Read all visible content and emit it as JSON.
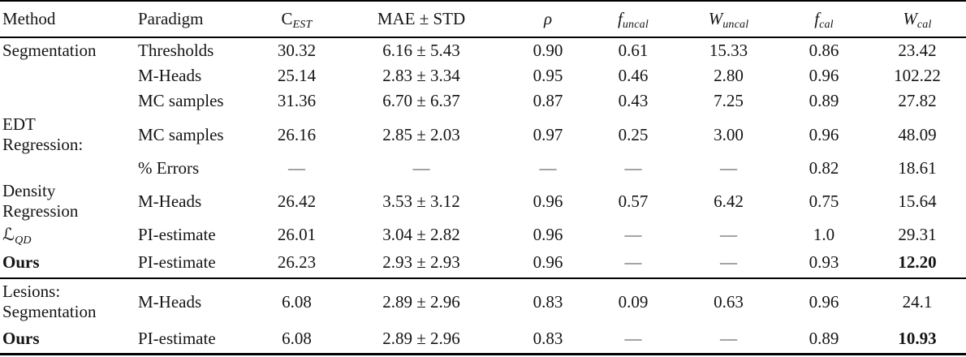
{
  "table": {
    "columns": [
      {
        "id": "method",
        "label": "Method"
      },
      {
        "id": "paradigm",
        "label": "Paradigm"
      },
      {
        "id": "c_est",
        "main": "C",
        "sub": "EST",
        "italic_main": false
      },
      {
        "id": "mae_std",
        "label": "MAE ± STD"
      },
      {
        "id": "rho",
        "label": "ρ",
        "italic": true
      },
      {
        "id": "f_uncal",
        "main": "f",
        "sub": "uncal",
        "italic_main": true
      },
      {
        "id": "w_uncal",
        "main": "W",
        "sub": "uncal",
        "italic_main": true
      },
      {
        "id": "f_cal",
        "main": "f",
        "sub": "cal",
        "italic_main": true
      },
      {
        "id": "w_cal",
        "main": "W",
        "sub": "cal",
        "italic_main": true
      }
    ],
    "rows": [
      {
        "method": {
          "text": "Segmentation"
        },
        "paradigm": "Thresholds",
        "values": [
          "30.32",
          "6.16 ± 5.43",
          "0.90",
          "0.61",
          "15.33",
          "0.86",
          "23.42"
        ]
      },
      {
        "method": {
          "text": ""
        },
        "paradigm": "M-Heads",
        "values": [
          "25.14",
          "2.83 ± 3.34",
          "0.95",
          "0.46",
          "2.80",
          "0.96",
          "102.22"
        ]
      },
      {
        "method": {
          "text": ""
        },
        "paradigm": "MC samples",
        "values": [
          "31.36",
          "6.70 ± 6.37",
          "0.87",
          "0.43",
          "7.25",
          "0.89",
          "27.82"
        ]
      },
      {
        "method": {
          "lines": [
            "EDT",
            "Regression:"
          ]
        },
        "paradigm": "MC samples",
        "values": [
          "26.16",
          "2.85 ± 2.03",
          "0.97",
          "0.25",
          "3.00",
          "0.96",
          "48.09"
        ]
      },
      {
        "method": {
          "text": ""
        },
        "paradigm": "% Errors",
        "values": [
          "—",
          "—",
          "—",
          "—",
          "—",
          "0.82",
          "18.61"
        ]
      },
      {
        "method": {
          "lines": [
            "Density",
            "Regression"
          ]
        },
        "paradigm": "M-Heads",
        "values": [
          "26.42",
          "3.53 ± 3.12",
          "0.96",
          "0.57",
          "6.42",
          "0.75",
          "15.64"
        ]
      },
      {
        "method": {
          "math": {
            "main": "ℒ",
            "sub": "QD"
          }
        },
        "paradigm": "PI-estimate",
        "values": [
          "26.01",
          "3.04 ± 2.82",
          "0.96",
          "—",
          "—",
          "1.0",
          "29.31"
        ]
      },
      {
        "method": {
          "text": "Ours",
          "bold": true
        },
        "paradigm": "PI-estimate",
        "values": [
          "26.23",
          "2.93 ± 2.93",
          "0.96",
          "—",
          "—",
          "0.93",
          "12.20"
        ],
        "bold_values": [
          6
        ]
      },
      {
        "method": {
          "lines": [
            "Lesions:",
            "Segmentation"
          ]
        },
        "paradigm": "M-Heads",
        "values": [
          "6.08",
          "2.89 ± 2.96",
          "0.83",
          "0.09",
          "0.63",
          "0.96",
          "24.1"
        ],
        "section_start": true
      },
      {
        "method": {
          "text": "Ours",
          "bold": true
        },
        "paradigm": "PI-estimate",
        "values": [
          "6.08",
          "2.89 ± 2.96",
          "0.83",
          "—",
          "—",
          "0.89",
          "10.93"
        ],
        "bold_values": [
          6
        ]
      }
    ]
  }
}
